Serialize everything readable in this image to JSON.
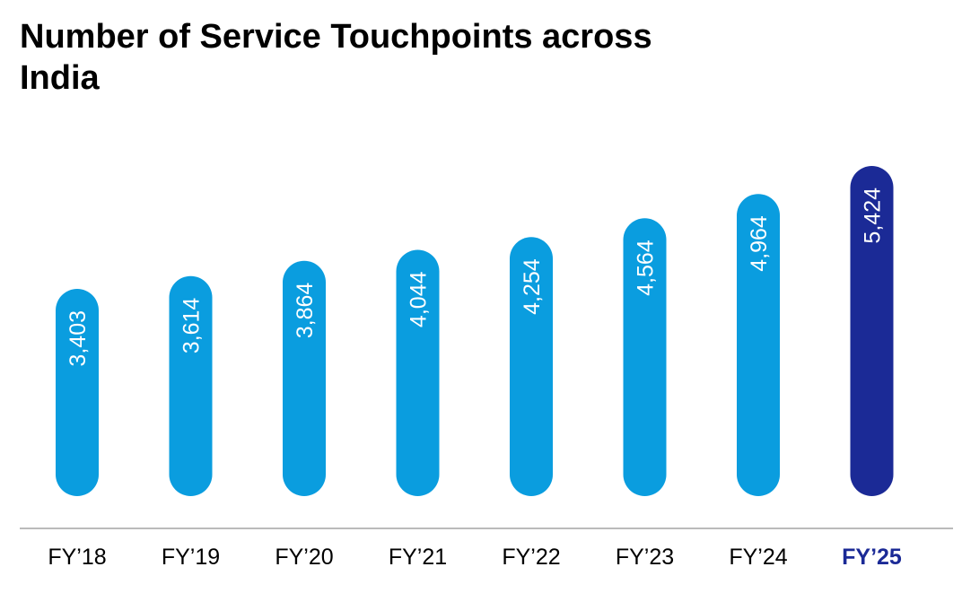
{
  "chart_data": {
    "type": "bar",
    "title": "Number of Service Touchpoints across India",
    "categories": [
      "FY’18",
      "FY’19",
      "FY’20",
      "FY’21",
      "FY’22",
      "FY’23",
      "FY’24",
      "FY’25"
    ],
    "values": [
      3403,
      3614,
      3864,
      4044,
      4254,
      4564,
      4964,
      5424
    ],
    "value_labels": [
      "3,403",
      "3,614",
      "3,864",
      "4,044",
      "4,254",
      "4,564",
      "4,964",
      "5,424"
    ],
    "highlight_index": 7,
    "xlabel": "",
    "ylabel": "",
    "grid": false,
    "legend": "none",
    "colors": {
      "bar": "#0A9DDF",
      "highlight": "#1B2A96",
      "label_text": "#FFFFFF",
      "axis": "#BBBBBB",
      "tick_text": "#000000",
      "highlight_tick_text": "#1B2A96"
    }
  }
}
